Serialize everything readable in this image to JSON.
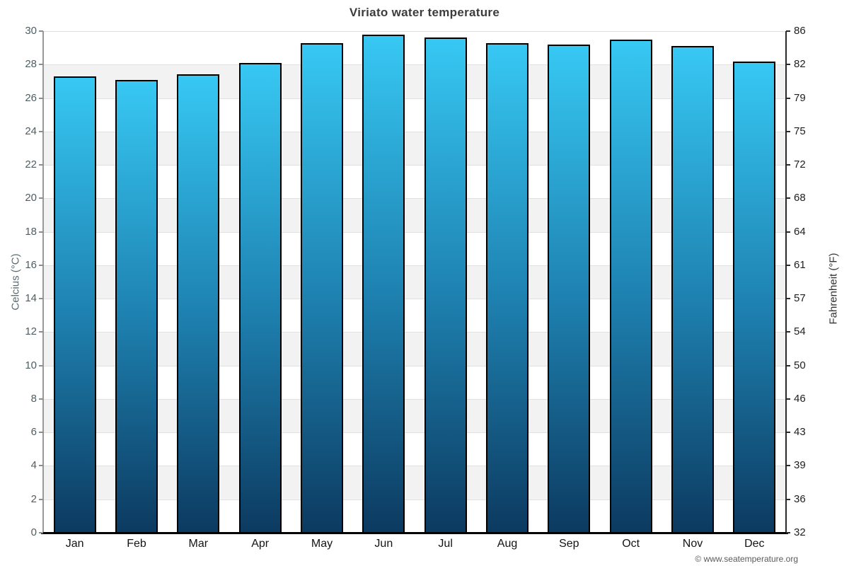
{
  "page": {
    "title": "Viriato water temperature",
    "footer": "© www.seatemperature.org"
  },
  "chart_data": {
    "type": "bar",
    "title": "Viriato water temperature",
    "categories": [
      "Jan",
      "Feb",
      "Mar",
      "Apr",
      "May",
      "Jun",
      "Jul",
      "Aug",
      "Sep",
      "Oct",
      "Nov",
      "Dec"
    ],
    "values": [
      27.3,
      27.1,
      27.4,
      28.1,
      29.3,
      29.8,
      29.6,
      29.3,
      29.2,
      29.5,
      29.1,
      28.2
    ],
    "unit": "°C",
    "ylabel_left": "Celcius (°C)",
    "ylabel_right": "Fahrenheit (°F)",
    "ylim": [
      0,
      30
    ],
    "yticks_left": [
      0,
      2,
      4,
      6,
      8,
      10,
      12,
      14,
      16,
      18,
      20,
      22,
      24,
      26,
      28,
      30
    ],
    "ytick_labels_right": [
      "32",
      "36",
      "39",
      "43",
      "46",
      "50",
      "54",
      "57",
      "61",
      "64",
      "68",
      "72",
      "75",
      "79",
      "82",
      "86"
    ],
    "grid": "horizontal alternating bands every 2°C",
    "legend": "none",
    "attribution": "© www.seatemperature.org",
    "colors": {
      "bar_gradient_top": "#37c8f3",
      "bar_gradient_mid": "#1e81b0",
      "bar_gradient_bottom": "#0c3a60",
      "bar_border": "#000000",
      "band_gray": "#f2f2f2",
      "band_white": "#ffffff",
      "gridline": "#e0e0e0",
      "axis_bottom": "#000000",
      "axis_left": "#999999",
      "axis_right": "#2a2a2a",
      "title_text": "#3c3c3c",
      "left_tick_text": "#4e5d64",
      "right_tick_text": "#1e1e1e",
      "month_text": "#141414",
      "footer_text": "#5a5a5a"
    }
  }
}
